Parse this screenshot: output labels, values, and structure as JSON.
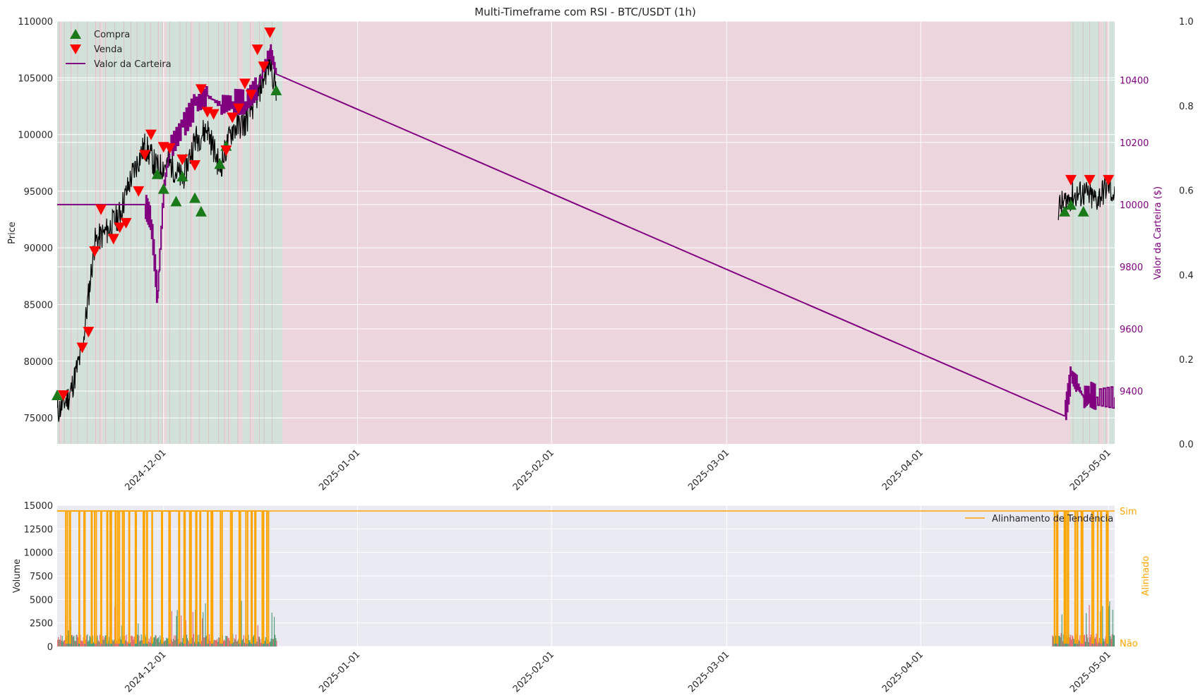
{
  "chart_data": [
    {
      "type": "line",
      "title": "Multi-Timeframe com RSI - BTC/USDT (1h)",
      "ylabel": "Price",
      "ylabel_right": "Valor da Carteira ($)",
      "xticks": [
        "2024-12-01",
        "2025-01-01",
        "2025-02-01",
        "2025-03-01",
        "2025-04-01",
        "2025-05-01"
      ],
      "x_range": [
        "2024-11-14",
        "2025-05-02"
      ],
      "yticks": [
        75000,
        80000,
        85000,
        90000,
        95000,
        100000,
        105000,
        110000
      ],
      "ylim": [
        72700,
        110000
      ],
      "yticks_right": [
        9400,
        9600,
        9800,
        10000,
        10200,
        10400
      ],
      "ylim_right": [
        9230,
        10590
      ],
      "yticks_far_right": [
        "0.0",
        "0.2",
        "0.4",
        "0.6",
        "0.8",
        "1.0"
      ],
      "legend": {
        "placement": "top-left",
        "items": [
          "Compra",
          "Venda",
          "Valor da Carteira"
        ]
      },
      "colors": {
        "price": "#000000",
        "portfolio": "#800080",
        "buy": "#1a7a1a",
        "sell": "#ff0000",
        "bg_bull": "#cfe0d6",
        "bg_bear": "#ecd3da",
        "axis_right": "#800080"
      },
      "grid": true,
      "price_series": {
        "name": "",
        "x": [
          "2024-11-14",
          "2024-11-16",
          "2024-11-18",
          "2024-11-20",
          "2024-11-22",
          "2024-11-24",
          "2024-11-26",
          "2024-11-28",
          "2024-11-30",
          "2024-12-02",
          "2024-12-04",
          "2024-12-06",
          "2024-12-08",
          "2024-12-10",
          "2024-12-12",
          "2024-12-14",
          "2024-12-16",
          "2024-12-18",
          "2024-12-19",
          "2025-04-23",
          "2025-04-25",
          "2025-04-27",
          "2025-04-29",
          "2025-05-01",
          "2025-05-02"
        ],
        "values": [
          75500,
          77000,
          81000,
          90500,
          91500,
          93000,
          96500,
          99000,
          97000,
          97500,
          96000,
          99500,
          100500,
          97000,
          100500,
          101000,
          103500,
          106500,
          104000,
          93500,
          94500,
          94800,
          94200,
          95500,
          94500
        ]
      },
      "portfolio_series": {
        "name": "Valor da Carteira",
        "x": [
          "2024-11-14",
          "2024-11-28",
          "2024-11-29",
          "2024-11-30",
          "2024-12-01",
          "2024-12-02",
          "2024-12-04",
          "2024-12-06",
          "2024-12-08",
          "2024-12-10",
          "2024-12-12",
          "2024-12-14",
          "2024-12-16",
          "2024-12-18",
          "2024-12-19",
          "2025-04-24",
          "2025-04-25",
          "2025-04-26",
          "2025-04-27",
          "2025-04-28",
          "2025-04-29",
          "2025-05-02"
        ],
        "values": [
          10000,
          10000,
          9950,
          9700,
          10050,
          10180,
          10250,
          10320,
          10350,
          10320,
          10330,
          10330,
          10380,
          10500,
          10420,
          9320,
          9450,
          9420,
          9380,
          9390,
          9380,
          9380
        ]
      },
      "buy_signals": {
        "x": [
          "2024-11-14",
          "2024-11-30",
          "2024-12-01",
          "2024-12-03",
          "2024-12-04",
          "2024-12-06",
          "2024-12-07",
          "2024-12-10",
          "2024-12-11",
          "2024-12-19",
          "2025-04-24",
          "2025-04-25",
          "2025-04-27"
        ],
        "values": [
          77000,
          96500,
          95200,
          94100,
          96300,
          94400,
          93200,
          97400,
          99000,
          103900,
          93200,
          93800,
          93200
        ]
      },
      "sell_signals": {
        "x": [
          "2024-11-15",
          "2024-11-18",
          "2024-11-19",
          "2024-11-20",
          "2024-11-21",
          "2024-11-23",
          "2024-11-24",
          "2024-11-25",
          "2024-11-27",
          "2024-11-28",
          "2024-11-29",
          "2024-12-01",
          "2024-12-02",
          "2024-12-04",
          "2024-12-06",
          "2024-12-07",
          "2024-12-08",
          "2024-12-09",
          "2024-12-11",
          "2024-12-12",
          "2024-12-13",
          "2024-12-14",
          "2024-12-15",
          "2024-12-16",
          "2024-12-17",
          "2024-12-18",
          "2025-04-25",
          "2025-04-28",
          "2025-05-01"
        ],
        "values": [
          77000,
          81200,
          82600,
          89700,
          93400,
          90800,
          91800,
          92200,
          95000,
          98200,
          100000,
          98900,
          98800,
          97800,
          97300,
          104000,
          102000,
          101800,
          98600,
          101500,
          102300,
          104500,
          103500,
          107500,
          106000,
          109000,
          96000,
          96000,
          96000
        ]
      },
      "regime_bands": [
        {
          "from": "2024-11-14",
          "to": "2024-12-20",
          "state": "mixed"
        },
        {
          "from": "2024-12-20",
          "to": "2025-04-25",
          "state": "bear"
        },
        {
          "from": "2025-04-25",
          "to": "2025-05-02",
          "state": "mixed"
        }
      ]
    },
    {
      "type": "bar",
      "ylabel": "Volume",
      "ylabel_right": "Alinhado",
      "xticks": [
        "2024-12-01",
        "2025-01-01",
        "2025-02-01",
        "2025-03-01",
        "2025-04-01",
        "2025-05-01"
      ],
      "yticks": [
        0,
        2500,
        5000,
        7500,
        10000,
        12500,
        15000
      ],
      "ylim": [
        0,
        15000
      ],
      "yticks_right": [
        "Não",
        "Sim"
      ],
      "legend": {
        "placement": "top-right",
        "items": [
          "Alinhamento de Tendência"
        ]
      },
      "colors": {
        "volume_up": "#2e8b57",
        "volume_down": "#e05050",
        "alignment": "#ffa500",
        "axis_right": "#ffa500",
        "panel_bg": "#eaeaf2"
      },
      "grid": true,
      "alignment_series": {
        "name": "Alinhamento de Tendência",
        "note_levels": [
          "Não",
          "Sim"
        ]
      }
    }
  ]
}
